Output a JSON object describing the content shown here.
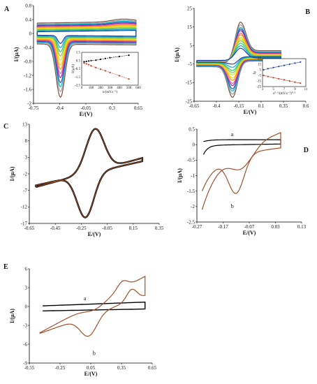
{
  "colors": {
    "black": "#000000",
    "brown": "#a0522d",
    "cv_family": [
      "#1f3fb0",
      "#1ea0d8",
      "#2ecc71",
      "#8bc34a",
      "#cddc39",
      "#ffd000",
      "#ff9800",
      "#f06292",
      "#9c27b0",
      "#3f51b5",
      "#00bcd4",
      "#9e9e9e",
      "#795548"
    ],
    "inset_series": [
      "#000000",
      "#c0392b"
    ]
  },
  "chart_data": [
    {
      "panel": "A",
      "type": "line",
      "description_free": true,
      "xlabel": "E/(V)",
      "ylabel": "I/(μA)",
      "xlim": [
        -0.75,
        0.65
      ],
      "ylim": [
        -2.0,
        0.8
      ],
      "x_ticks": [
        "-0.75",
        "-0.4",
        "-0.05",
        "0.3",
        "0.65"
      ],
      "y_ticks": [
        "0.8",
        "0.4",
        "0",
        "-0.4",
        "-0.8",
        "-1.2",
        "-1.6",
        "-2"
      ],
      "grid": false,
      "series_count": 13,
      "cv_family": {
        "x_start": -0.7,
        "x_end": 0.62,
        "peak_x": -0.39,
        "cathodic_peaks": [
          -0.28,
          -0.4,
          -0.52,
          -0.64,
          -0.76,
          -0.9,
          -1.02,
          -1.14,
          -1.26,
          -1.4,
          -1.52,
          -1.66,
          -1.82
        ],
        "forward_offsets": [
          0.05,
          0.07,
          0.09,
          0.11,
          0.13,
          0.15,
          0.17,
          0.19,
          0.21,
          0.23,
          0.25,
          0.27,
          0.3
        ],
        "reverse_offsets": [
          -0.05,
          -0.07,
          -0.09,
          -0.11,
          -0.13,
          -0.15,
          -0.17,
          -0.19,
          -0.21,
          -0.23,
          -0.25,
          -0.27,
          -0.3
        ]
      },
      "inset": {
        "xlabel": "υ/(mV.s⁻¹)",
        "ylabel": "I/(μA)",
        "xlim": [
          0,
          600
        ],
        "ylim": [
          -2.5,
          1.5
        ],
        "x_ticks": [
          "0",
          "100",
          "200",
          "300",
          "400",
          "500",
          "600"
        ],
        "y_ticks": [
          "1.5",
          "0.5",
          "-0.5",
          "-1.5",
          "-2.5"
        ],
        "series": [
          {
            "x": [
              25,
              50,
              75,
              100,
              150,
              200,
              250,
              300,
              400,
              500
            ],
            "y": [
              0.35,
              0.4,
              0.45,
              0.5,
              0.55,
              0.65,
              0.75,
              0.85,
              1.0,
              1.15
            ]
          },
          {
            "x": [
              25,
              50,
              75,
              100,
              150,
              200,
              250,
              300,
              400,
              500
            ],
            "y": [
              0.2,
              0.1,
              0.0,
              -0.15,
              -0.35,
              -0.55,
              -0.75,
              -0.95,
              -1.35,
              -1.75
            ]
          }
        ]
      },
      "panel_letter": "A"
    },
    {
      "panel": "B",
      "type": "line",
      "xlabel": "E/(V)",
      "ylabel": "I/(μA)",
      "xlim": [
        -0.65,
        0.6
      ],
      "ylim": [
        -25,
        25
      ],
      "x_ticks": [
        "-0.65",
        "-0.4",
        "-0.15",
        "0.1",
        "0.35",
        "0.6"
      ],
      "y_ticks": [
        "25",
        "15",
        "5",
        "-5",
        "-15",
        "-25"
      ],
      "series_count": 13,
      "cv_family": {
        "x_start": -0.62,
        "x_end": 0.32,
        "anodic_peak_x": -0.13,
        "cathodic_peak_x": -0.22,
        "anodic_peaks": [
          3.5,
          5,
          6.5,
          8,
          9,
          10,
          11.5,
          12.5,
          14,
          15,
          16,
          17.5,
          19
        ],
        "cathodic_peaks": [
          -5,
          -6.5,
          -8,
          -9,
          -10,
          -11.5,
          -12.5,
          -14,
          -15,
          -16.5,
          -17.5,
          -19,
          -20.5
        ]
      },
      "inset": {
        "xlabel": "υ⁰·⁵/(mV.s⁻¹)⁰·⁵",
        "ylabel": "Ip",
        "xlim": [
          3,
          11
        ],
        "ylim": [
          -25,
          25
        ],
        "x_ticks": [
          "3",
          "5",
          "7",
          "9",
          "11"
        ],
        "y_ticks": [
          "25",
          "15",
          "5",
          "-5",
          "-15",
          "-25"
        ],
        "series": [
          {
            "x": [
              3.2,
              4,
              5,
              6,
              7,
              8,
              9,
              10
            ],
            "y": [
              5,
              7,
              9,
              11,
              13,
              15,
              17,
              19
            ]
          },
          {
            "x": [
              3.2,
              4,
              5,
              6,
              7,
              8,
              9,
              10
            ],
            "y": [
              -5,
              -7,
              -9,
              -11,
              -13,
              -15,
              -17,
              -19
            ]
          }
        ]
      },
      "panel_letter": "B"
    },
    {
      "panel": "C",
      "type": "line",
      "xlabel": "E/(V)",
      "ylabel": "I/(μA)",
      "xlim": [
        -0.65,
        0.35
      ],
      "ylim": [
        -17,
        13
      ],
      "x_ticks": [
        "-0.65",
        "-0.45",
        "-0.25",
        "-0.05",
        "0.15",
        "0.35"
      ],
      "y_ticks": [
        "13",
        "8",
        "3",
        "-2",
        "-7",
        "-12",
        "-17"
      ],
      "cv": {
        "x_start": -0.6,
        "x_end": 0.22,
        "anodic_peak": [
          -0.14,
          11.6
        ],
        "cathodic_peak": [
          -0.22,
          -15.2
        ],
        "start_y": -6.0,
        "end_forward_y": 2.8,
        "end_reverse_y": 1.8
      },
      "panel_letter": "C"
    },
    {
      "panel": "D",
      "type": "line",
      "xlabel": "E/(V)",
      "ylabel": "I/(μA)",
      "xlim": [
        -0.27,
        0.13
      ],
      "ylim": [
        -2.5,
        0.5
      ],
      "x_ticks": [
        "-0.27",
        "-0.17",
        "-0.07",
        "0.03",
        "0.13"
      ],
      "y_ticks": [
        "0.5",
        "0",
        "-0.5",
        "-1",
        "-1.5",
        "-2",
        "-2.5"
      ],
      "curve_labels": [
        "a",
        "b"
      ],
      "panel_letter": "D"
    },
    {
      "panel": "E",
      "type": "line",
      "xlabel": "E/(V)",
      "ylabel": "I/(μA)",
      "xlim": [
        -0.55,
        0.65
      ],
      "ylim": [
        -9,
        6
      ],
      "x_ticks": [
        "-0.55",
        "-0.25",
        "0.05",
        "0.35",
        "0.65"
      ],
      "y_ticks": [
        "6",
        "3",
        "0",
        "-3",
        "-6",
        "-9"
      ],
      "curve_labels": [
        "a",
        "b"
      ],
      "panel_letter": "E"
    }
  ]
}
